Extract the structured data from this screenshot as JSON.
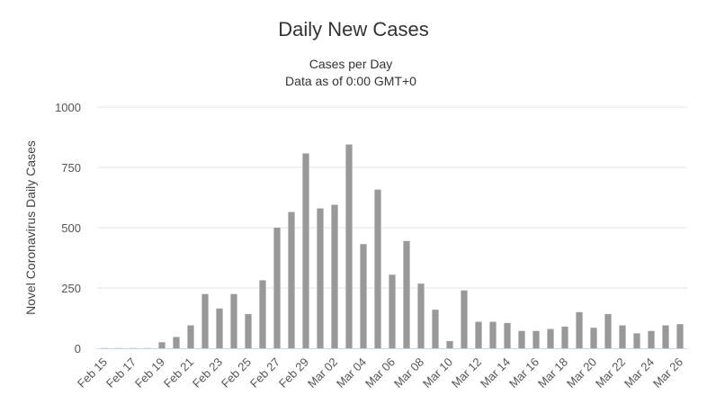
{
  "chart_data": {
    "type": "bar",
    "title": "Daily New Cases",
    "subtitle_lines": [
      "Cases per Day",
      "Data as of 0:00 GMT+0"
    ],
    "ylabel": "Novel Coronavirus Daily Cases",
    "xlabel": "",
    "ylim": [
      0,
      1000
    ],
    "yticks": [
      0,
      250,
      500,
      750,
      1000
    ],
    "yticklabels": [
      "0",
      "250",
      "500",
      "750",
      "1000"
    ],
    "grid": true,
    "legend": "none",
    "bar_color": "#999999",
    "categories": [
      "Feb 15",
      "Feb 16",
      "Feb 17",
      "Feb 18",
      "Feb 19",
      "Feb 20",
      "Feb 21",
      "Feb 22",
      "Feb 23",
      "Feb 24",
      "Feb 25",
      "Feb 26",
      "Feb 27",
      "Feb 28",
      "Feb 29",
      "Mar 01",
      "Mar 02",
      "Mar 03",
      "Mar 04",
      "Mar 05",
      "Mar 06",
      "Mar 07",
      "Mar 08",
      "Mar 09",
      "Mar 10",
      "Mar 11",
      "Mar 12",
      "Mar 13",
      "Mar 14",
      "Mar 15",
      "Mar 16",
      "Mar 17",
      "Mar 18",
      "Mar 19",
      "Mar 20",
      "Mar 21",
      "Mar 22",
      "Mar 23",
      "Mar 24",
      "Mar 25",
      "Mar 26"
    ],
    "xticklabels": [
      "Feb 15",
      "Feb 17",
      "Feb 19",
      "Feb 21",
      "Feb 23",
      "Feb 25",
      "Feb 27",
      "Feb 29",
      "Mar 02",
      "Mar 04",
      "Mar 06",
      "Mar 08",
      "Mar 10",
      "Mar 12",
      "Mar 14",
      "Mar 16",
      "Mar 18",
      "Mar 20",
      "Mar 22",
      "Mar 24",
      "Mar 26"
    ],
    "values": [
      1,
      1,
      1,
      1,
      25,
      47,
      95,
      225,
      165,
      225,
      142,
      282,
      500,
      565,
      808,
      580,
      595,
      845,
      432,
      658,
      305,
      445,
      268,
      160,
      30,
      240,
      110,
      110,
      105,
      72,
      72,
      80,
      90,
      150,
      85,
      142,
      95,
      62,
      72,
      95,
      100
    ]
  }
}
